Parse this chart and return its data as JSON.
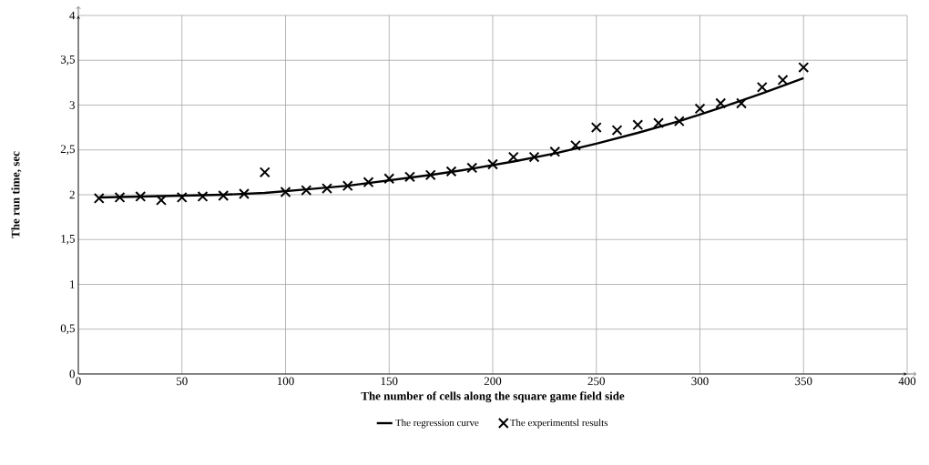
{
  "chart_data": {
    "type": "line",
    "xlabel": "The number  of cells along the square game field side",
    "ylabel": "The run time, sec",
    "xlim": [
      0,
      400
    ],
    "xticks": [
      0,
      50,
      100,
      150,
      200,
      250,
      300,
      350,
      400
    ],
    "ylim": [
      0,
      4
    ],
    "yticks": [
      0,
      {
        "value": 0.5,
        "label": "0,5"
      },
      1,
      {
        "value": 1.5,
        "label": "1,5"
      },
      2,
      {
        "value": 2.5,
        "label": "2,5"
      },
      3,
      {
        "value": 3.5,
        "label": "3,5"
      },
      4
    ],
    "grid": true,
    "legend": "bottom",
    "series": [
      {
        "name": "The regression curve",
        "color": "#000000",
        "marker": "none",
        "line_style": "solid",
        "x": [
          10,
          30,
          50,
          70,
          90,
          110,
          130,
          150,
          170,
          190,
          210,
          230,
          250,
          270,
          290,
          310,
          330,
          350
        ],
        "values": [
          1.97,
          1.98,
          1.99,
          2.0,
          2.02,
          2.06,
          2.1,
          2.16,
          2.22,
          2.29,
          2.37,
          2.46,
          2.57,
          2.69,
          2.82,
          2.97,
          3.13,
          3.3
        ]
      },
      {
        "name": "The experimentsl results",
        "type": "scatter",
        "color": "#000000",
        "marker": "cross",
        "x": [
          10,
          20,
          30,
          40,
          50,
          60,
          70,
          80,
          90,
          100,
          110,
          120,
          130,
          140,
          150,
          160,
          170,
          180,
          190,
          200,
          210,
          220,
          230,
          240,
          250,
          260,
          270,
          280,
          290,
          300,
          310,
          320,
          330,
          340,
          350
        ],
        "values": [
          1.96,
          1.97,
          1.98,
          1.94,
          1.97,
          1.98,
          1.99,
          2.01,
          2.25,
          2.03,
          2.05,
          2.07,
          2.1,
          2.14,
          2.18,
          2.2,
          2.22,
          2.26,
          2.3,
          2.34,
          2.42,
          2.42,
          2.48,
          2.55,
          2.75,
          2.72,
          2.78,
          2.8,
          2.82,
          2.96,
          3.02,
          3.02,
          3.2,
          3.28,
          3.42
        ]
      }
    ]
  }
}
